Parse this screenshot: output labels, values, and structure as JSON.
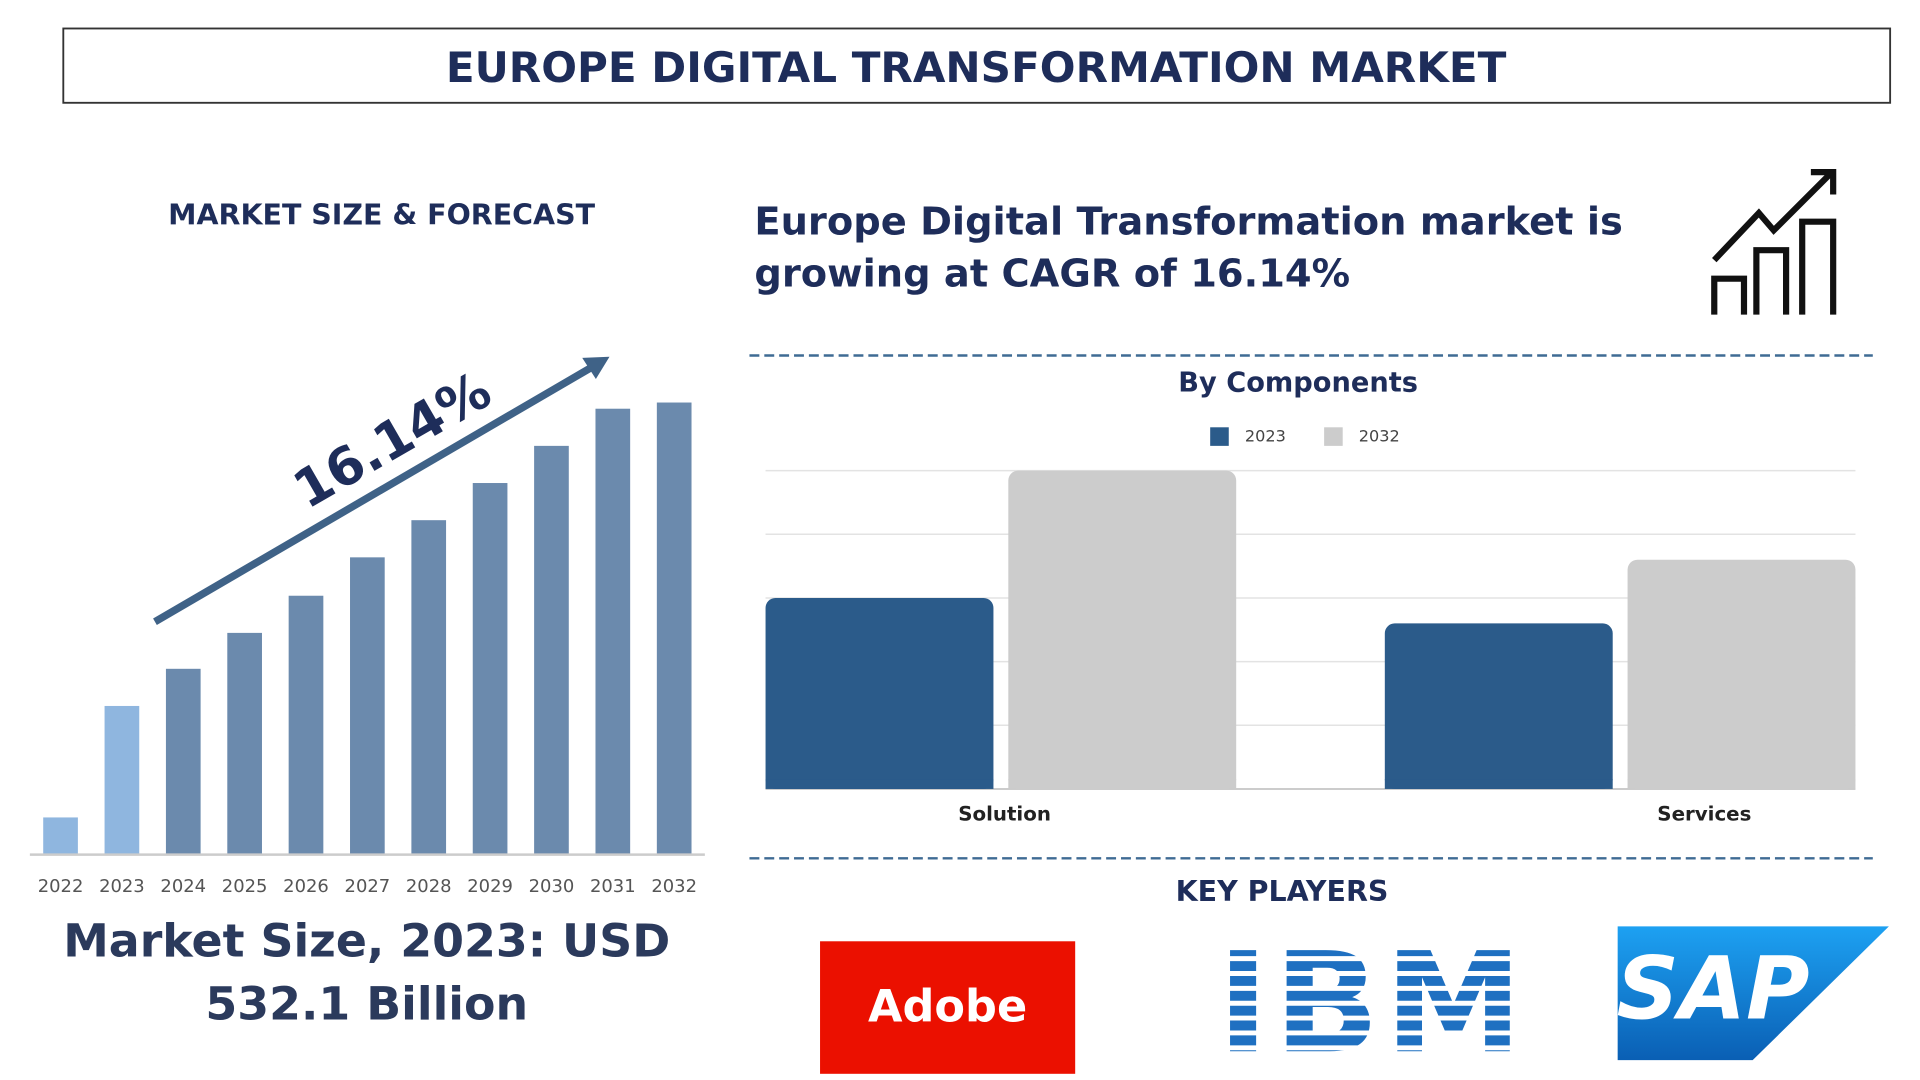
{
  "header": {
    "title": "EUROPE DIGITAL TRANSFORMATION MARKET"
  },
  "market_size": {
    "lines": [
      "Market Size, 2023: USD",
      "532.1 Billion"
    ]
  },
  "cagr": {
    "lines": [
      "Europe Digital Transformation market is",
      "growing at CAGR of 16.14%"
    ]
  },
  "key_players": {
    "title": "KEY PLAYERS",
    "names": [
      "Adobe",
      "IBM",
      "SAP"
    ]
  },
  "chart_data": [
    {
      "type": "bar",
      "title": "MARKET SIZE & FORECAST",
      "annotation": "16.14%",
      "categories": [
        "2022",
        "2023",
        "2024",
        "2025",
        "2026",
        "2027",
        "2028",
        "2029",
        "2030",
        "2031",
        "2032"
      ],
      "values": [
        30,
        120,
        150,
        179,
        209,
        240,
        270,
        300,
        330,
        360,
        365
      ],
      "colors": [
        "#8fb6df",
        "#8fb6df",
        "#6b8aad",
        "#6b8aad",
        "#6b8aad",
        "#6b8aad",
        "#6b8aad",
        "#6b8aad",
        "#6b8aad",
        "#6b8aad",
        "#6b8aad"
      ],
      "ylim": [
        0,
        380
      ]
    },
    {
      "type": "grouped_bar",
      "title": "By Components",
      "categories": [
        "Solution",
        "Services"
      ],
      "series": [
        {
          "name": "2023",
          "color": "#2b5b8a",
          "values": [
            3,
            2.6
          ]
        },
        {
          "name": "2032",
          "color": "#cccccc",
          "values": [
            5,
            3.6
          ]
        }
      ],
      "ylim": [
        0,
        5
      ],
      "yticks": [
        0,
        1,
        2,
        3,
        4,
        5
      ],
      "grid": true
    }
  ]
}
